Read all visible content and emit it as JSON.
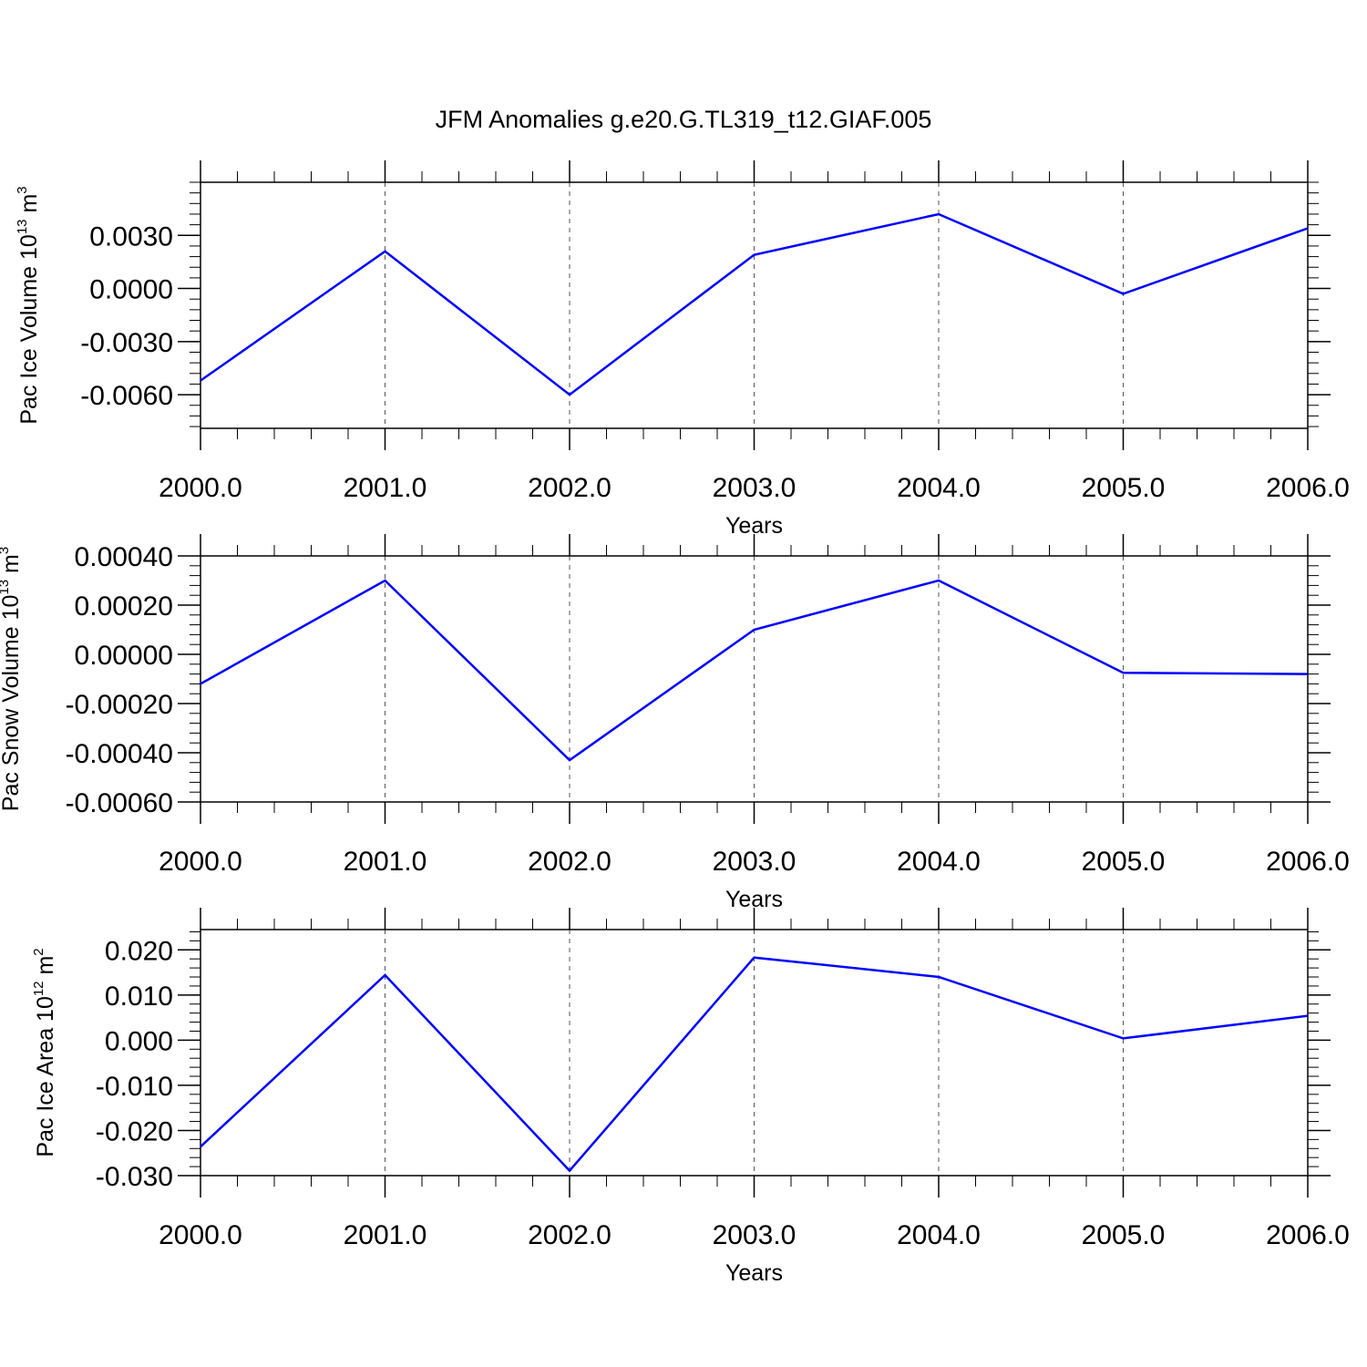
{
  "title": "JFM Anomalies g.e20.G.TL319_t12.GIAF.005",
  "colors": {
    "series": "#0000ff",
    "axes": "#000000",
    "grid": "#555555"
  },
  "chart_data": [
    {
      "type": "line",
      "xlabel": "Years",
      "ylabel": {
        "main": "Pac Ice Volume 10",
        "exp": "13",
        "unit": " m",
        "unit_exp": "3"
      },
      "x": [
        2000,
        2001,
        2002,
        2003,
        2004,
        2005,
        2006
      ],
      "values": [
        -0.0052,
        0.0021,
        -0.006,
        0.0019,
        0.0042,
        -0.0003,
        0.0034
      ],
      "xlim": [
        2000,
        2006
      ],
      "ylim": [
        -0.0079,
        0.006
      ],
      "xticks": [
        2000,
        2001,
        2002,
        2003,
        2004,
        2005,
        2006
      ],
      "xtick_labels": [
        "2000.0",
        "2001.0",
        "2002.0",
        "2003.0",
        "2004.0",
        "2005.0",
        "2006.0"
      ],
      "yticks": [
        -0.006,
        -0.003,
        0.0,
        0.003
      ],
      "ytick_labels": [
        "-0.0060",
        "-0.0030",
        "0.0000",
        "0.0030"
      ],
      "y_minor_step": 0.0006,
      "grid": "vertical dashed at major x ticks"
    },
    {
      "type": "line",
      "xlabel": "Years",
      "ylabel": {
        "main": "Pac Snow Volume 10",
        "exp": "13",
        "unit": " m",
        "unit_exp": "3"
      },
      "x": [
        2000,
        2001,
        2002,
        2003,
        2004,
        2005,
        2006
      ],
      "values": [
        -0.00012,
        0.0003,
        -0.00043,
        0.0001,
        0.0003,
        -7.5e-05,
        -8e-05
      ],
      "xlim": [
        2000,
        2006
      ],
      "ylim": [
        -0.0006,
        0.0004
      ],
      "xticks": [
        2000,
        2001,
        2002,
        2003,
        2004,
        2005,
        2006
      ],
      "xtick_labels": [
        "2000.0",
        "2001.0",
        "2002.0",
        "2003.0",
        "2004.0",
        "2005.0",
        "2006.0"
      ],
      "yticks": [
        -0.0006,
        -0.0004,
        -0.0002,
        0.0,
        0.0002,
        0.0004
      ],
      "ytick_labels": [
        "-0.00060",
        "-0.00040",
        "-0.00020",
        "0.00000",
        "0.00020",
        "0.00040"
      ],
      "y_minor_step": 4e-05,
      "grid": "vertical dashed at major x ticks"
    },
    {
      "type": "line",
      "xlabel": "Years",
      "ylabel": {
        "main": "Pac Ice Area 10",
        "exp": "12",
        "unit": " m",
        "unit_exp": "2"
      },
      "x": [
        2000,
        2001,
        2002,
        2003,
        2004,
        2005,
        2006
      ],
      "values": [
        -0.0236,
        0.0144,
        -0.0289,
        0.0183,
        0.014,
        0.0004,
        0.0054
      ],
      "xlim": [
        2000,
        2006
      ],
      "ylim": [
        -0.03,
        0.0245
      ],
      "xticks": [
        2000,
        2001,
        2002,
        2003,
        2004,
        2005,
        2006
      ],
      "xtick_labels": [
        "2000.0",
        "2001.0",
        "2002.0",
        "2003.0",
        "2004.0",
        "2005.0",
        "2006.0"
      ],
      "yticks": [
        -0.03,
        -0.02,
        -0.01,
        0.0,
        0.01,
        0.02
      ],
      "ytick_labels": [
        "-0.030",
        "-0.020",
        "-0.010",
        "0.000",
        "0.010",
        "0.020"
      ],
      "y_minor_step": 0.002,
      "grid": "vertical dashed at major x ticks"
    }
  ]
}
